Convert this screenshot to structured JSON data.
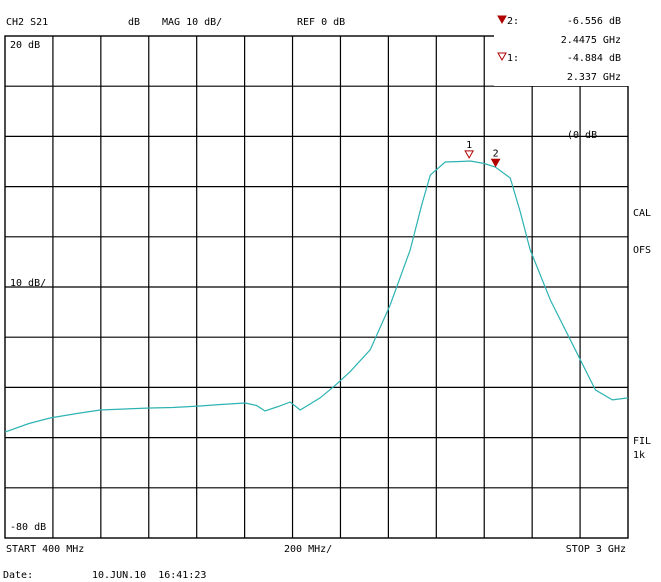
{
  "chart_data": {
    "type": "line",
    "header": {
      "channel": "CH2 S21",
      "format": "dB",
      "scale": "MAG 10 dB/",
      "reference": "REF 0 dB"
    },
    "ylim": [
      -80,
      20
    ],
    "yticks": [
      {
        "value": 20,
        "label": "20 dB"
      },
      {
        "value": -80,
        "label": "-80 dB"
      }
    ],
    "ygrid": [
      10,
      0,
      -10,
      -20,
      -30,
      -40,
      -50,
      -60,
      -70
    ],
    "scale_label": "10 dB/",
    "reference_marker": "(0 dB",
    "xlim": [
      400,
      3000
    ],
    "xgrid": [
      600,
      800,
      1000,
      1200,
      1400,
      1600,
      1800,
      2000,
      2200,
      2400,
      2600,
      2800
    ],
    "x_start_label": "START 400 MHz",
    "x_div_label": "200 MHz/",
    "x_stop_label": "STOP 3 GHz",
    "series": [
      {
        "color": "#2eb3b3",
        "x": [
          400,
          500,
          588,
          700,
          797,
          900,
          1005,
          1100,
          1214,
          1300,
          1402,
          1450,
          1485,
          1540,
          1590,
          1632,
          1715,
          1780,
          1840,
          1924,
          2007,
          2091,
          2140,
          2175,
          2237,
          2300,
          2342,
          2400,
          2446,
          2509,
          2550,
          2592,
          2676,
          2780,
          2864,
          2935,
          3000
        ],
        "values": [
          -58.9,
          -57.2,
          -56.1,
          -55.2,
          -54.5,
          -54.3,
          -54.1,
          -54.0,
          -53.7,
          -53.4,
          -53.1,
          -53.6,
          -54.7,
          -53.8,
          -52.9,
          -54.5,
          -52.1,
          -49.5,
          -46.9,
          -42.5,
          -33.6,
          -22.6,
          -13.5,
          -7.7,
          -5.1,
          -5.0,
          -4.9,
          -5.4,
          -6.1,
          -8.3,
          -15.0,
          -22.6,
          -32.6,
          -42.5,
          -50.5,
          -52.5,
          -52.1
        ]
      }
    ],
    "markers": [
      {
        "name": "2",
        "marker_label": "2:",
        "x": 2447.5,
        "x_label": "2.4475 GHz",
        "value": -6.556,
        "value_label": "-6.556 dB",
        "filled": true,
        "color": "#b00000"
      },
      {
        "name": "1",
        "marker_label": "1:",
        "x": 2337,
        "x_label": "2.337 GHz",
        "value": -4.884,
        "value_label": "-4.884 dB",
        "filled": false,
        "color": "#b00000"
      }
    ],
    "status": [
      "CAL",
      "OFS",
      "FIL",
      "1k"
    ],
    "status_color": "#2a9a2a",
    "date_label": "Date:",
    "date": "10.JUN.10  16:41:23"
  }
}
